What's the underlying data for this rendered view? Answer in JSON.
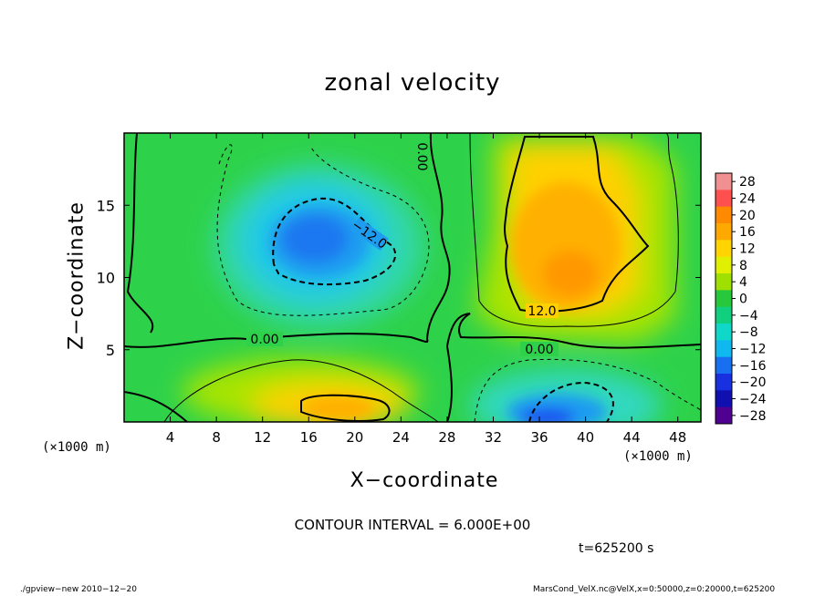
{
  "chart_data": {
    "type": "heatmap",
    "title": "zonal velocity",
    "xlabel": "X−coordinate",
    "ylabel": "Z−coordinate",
    "x_unit_left": "(×1000 m)",
    "x_unit_right": "(×1000 m)",
    "xlim": [
      0,
      50
    ],
    "ylim": [
      0,
      20
    ],
    "x_ticks": [
      4,
      8,
      12,
      16,
      20,
      24,
      28,
      32,
      36,
      40,
      44,
      48
    ],
    "y_ticks": [
      5,
      10,
      15
    ],
    "colorbar_ticks": [
      28,
      24,
      20,
      16,
      12,
      8,
      4,
      0,
      -4,
      -8,
      -12,
      -16,
      -20,
      -24,
      -28
    ],
    "colorbar_tick_labels": [
      "28",
      "24",
      "20",
      "16",
      "12",
      "8",
      "4",
      "0",
      "−4",
      "−8",
      "−12",
      "−16",
      "−20",
      "−24",
      "−28"
    ],
    "colorbar_colors": [
      "#f09090",
      "#ff5050",
      "#ff8a00",
      "#ffa800",
      "#ffd400",
      "#e0f000",
      "#a0e000",
      "#28c83c",
      "#10d080",
      "#10d8c8",
      "#10b8f0",
      "#1870f0",
      "#1830e0",
      "#1010b0",
      "#500090"
    ],
    "contour_labels": [
      "0.00",
      "0.00",
      "0.00",
      "−12.0",
      "12.0"
    ],
    "contour_interval": "CONTOUR INTERVAL = 6.000E+00",
    "time": "t=625200 s",
    "footer_left": "./gpview−new  2010−12−20",
    "footer_right": "MarsCond_VelX.nc@VelX,x=0:50000,z=0:20000,t=625200",
    "grid": false,
    "legend_placement": "right"
  }
}
